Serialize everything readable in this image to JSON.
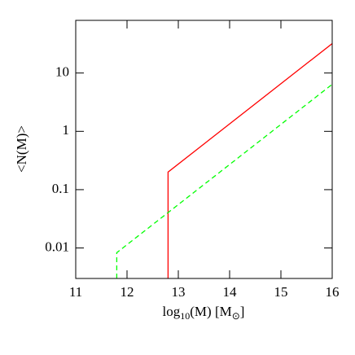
{
  "chart_data": {
    "type": "line",
    "log_y": true,
    "xlabel": [
      "log",
      "10",
      "(M)  [M",
      "⊙",
      "]"
    ],
    "ylabel": "<N(M)>",
    "xlim": [
      11,
      16
    ],
    "xticks": [
      11,
      12,
      13,
      14,
      15,
      16
    ],
    "ylim": [
      0.003,
      80
    ],
    "yticks": [
      0.01,
      0.1,
      1,
      10
    ],
    "series": [
      {
        "color": "#ff0000",
        "dash": false,
        "x": [
          12.8,
          12.8,
          16
        ],
        "values": [
          0.003,
          0.2,
          32
        ]
      },
      {
        "color": "#00ff00",
        "dash": true,
        "x": [
          11.8,
          11.8,
          16
        ],
        "values": [
          0.003,
          0.0083,
          6.4
        ]
      }
    ]
  }
}
